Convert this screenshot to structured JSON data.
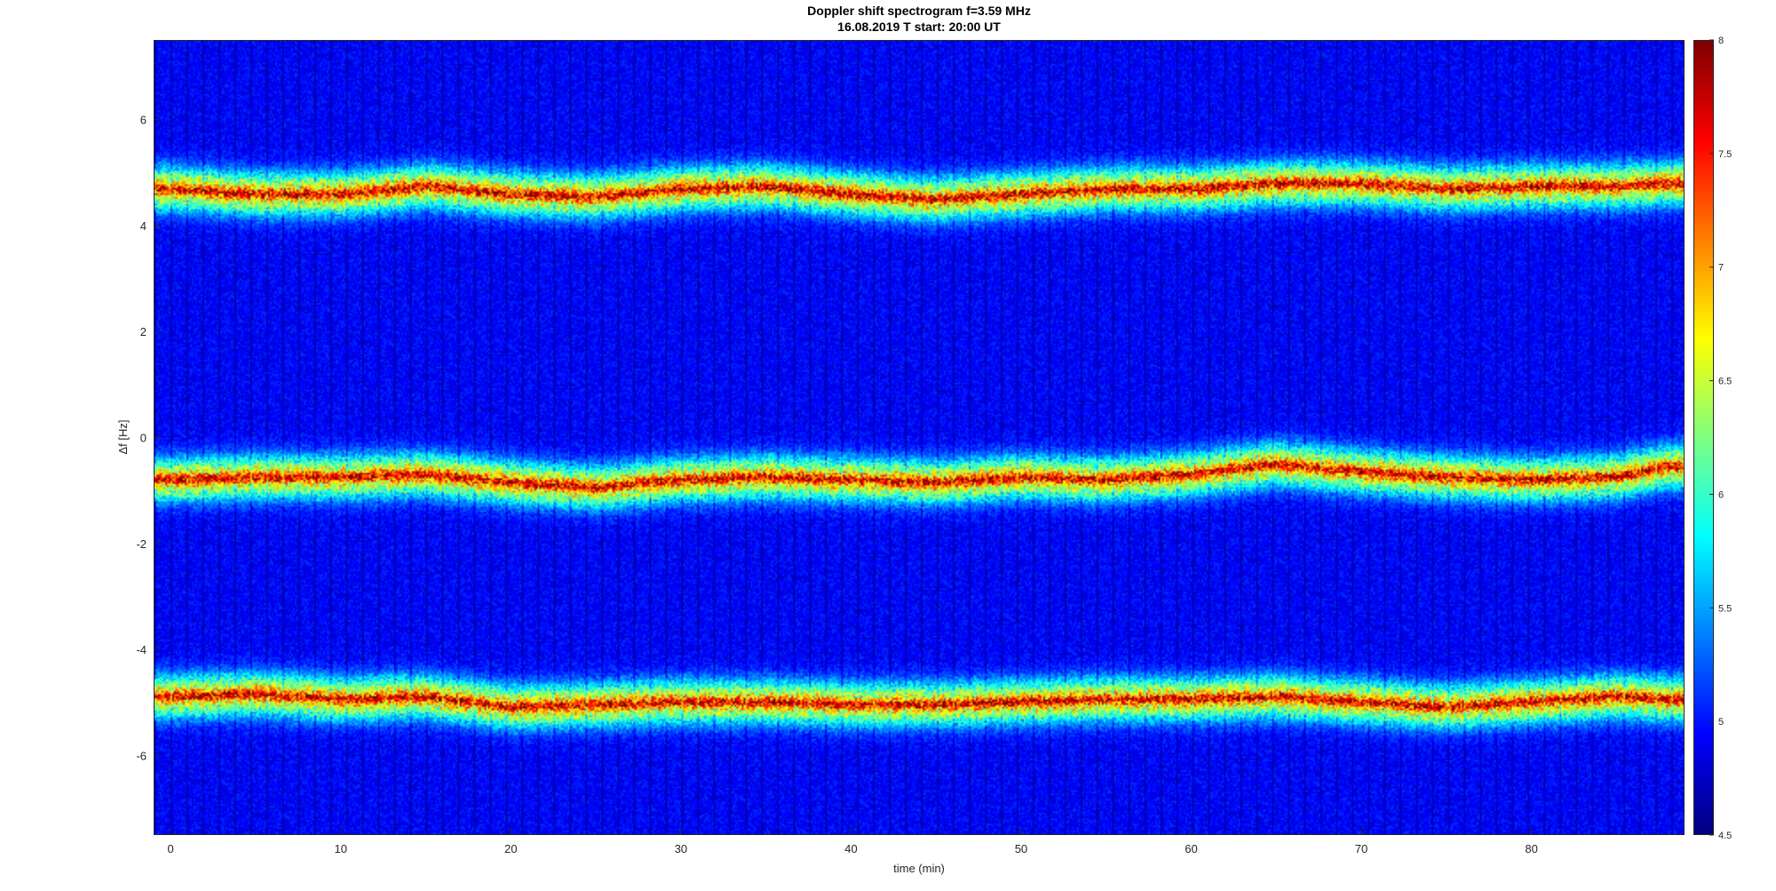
{
  "chart_data": {
    "type": "heatmap",
    "title": "Doppler shift spectrogram f=3.59 MHz",
    "subtitle": "16.08.2019    T start: 20:00 UT",
    "xlabel": "time (min)",
    "ylabel": "Δf [Hz]",
    "xlim": [
      -1,
      89
    ],
    "ylim": [
      -7.5,
      7.5
    ],
    "x_ticks": [
      0,
      10,
      20,
      30,
      40,
      50,
      60,
      70,
      80
    ],
    "y_ticks": [
      -6,
      -4,
      -2,
      0,
      2,
      4,
      6
    ],
    "colorbar": {
      "clim": [
        4.5,
        8
      ],
      "ticks": [
        4.5,
        5,
        5.5,
        6,
        6.5,
        7,
        7.5,
        8
      ],
      "colormap": "jet"
    },
    "series": [
      {
        "x": [
          0,
          5,
          10,
          15,
          20,
          25,
          30,
          35,
          40,
          45,
          50,
          55,
          60,
          65,
          70,
          75,
          80,
          85,
          88
        ],
        "values": [
          4.7,
          4.6,
          4.6,
          4.75,
          4.6,
          4.55,
          4.7,
          4.75,
          4.6,
          4.5,
          4.6,
          4.7,
          4.7,
          4.8,
          4.8,
          4.7,
          4.75,
          4.75,
          4.8
        ]
      },
      {
        "x": [
          0,
          5,
          10,
          15,
          20,
          25,
          30,
          35,
          40,
          45,
          50,
          55,
          60,
          65,
          70,
          75,
          80,
          85,
          88
        ],
        "values": [
          -0.8,
          -0.75,
          -0.75,
          -0.7,
          -0.85,
          -0.95,
          -0.8,
          -0.75,
          -0.8,
          -0.85,
          -0.75,
          -0.8,
          -0.7,
          -0.5,
          -0.65,
          -0.75,
          -0.8,
          -0.75,
          -0.55
        ]
      },
      {
        "x": [
          0,
          5,
          10,
          15,
          20,
          25,
          30,
          35,
          40,
          45,
          50,
          55,
          60,
          65,
          70,
          75,
          80,
          85,
          88
        ],
        "values": [
          -4.9,
          -4.85,
          -4.95,
          -4.9,
          -5.1,
          -5.05,
          -5.0,
          -5.0,
          -5.05,
          -5.05,
          -5.0,
          -4.95,
          -4.95,
          -4.9,
          -5.0,
          -5.1,
          -5.0,
          -4.9,
          -4.95
        ]
      }
    ],
    "grid": false
  },
  "colors": {
    "axis": "#262626",
    "trace": "#ff3030",
    "background_level": "#00007f"
  }
}
